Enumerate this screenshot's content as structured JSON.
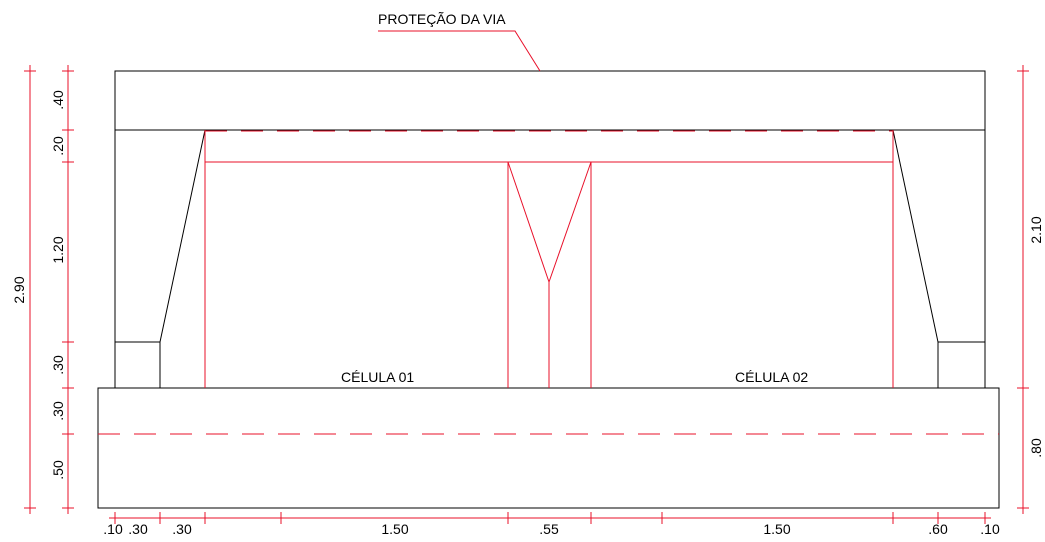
{
  "title_label": "PROTEÇÃO DA VIA",
  "cells": [
    "CÉLULA 01",
    "CÉLULA 02"
  ],
  "dimensions": {
    "left_total": "2.90",
    "left": [
      ".40",
      ".20",
      "1.20",
      ".30",
      ".30",
      ".50"
    ],
    "right": [
      "2.10",
      ".80"
    ],
    "bottom": [
      ".10",
      ".30",
      ".30",
      "1.50",
      ".55",
      "1.50",
      ".60",
      ".10"
    ]
  }
}
